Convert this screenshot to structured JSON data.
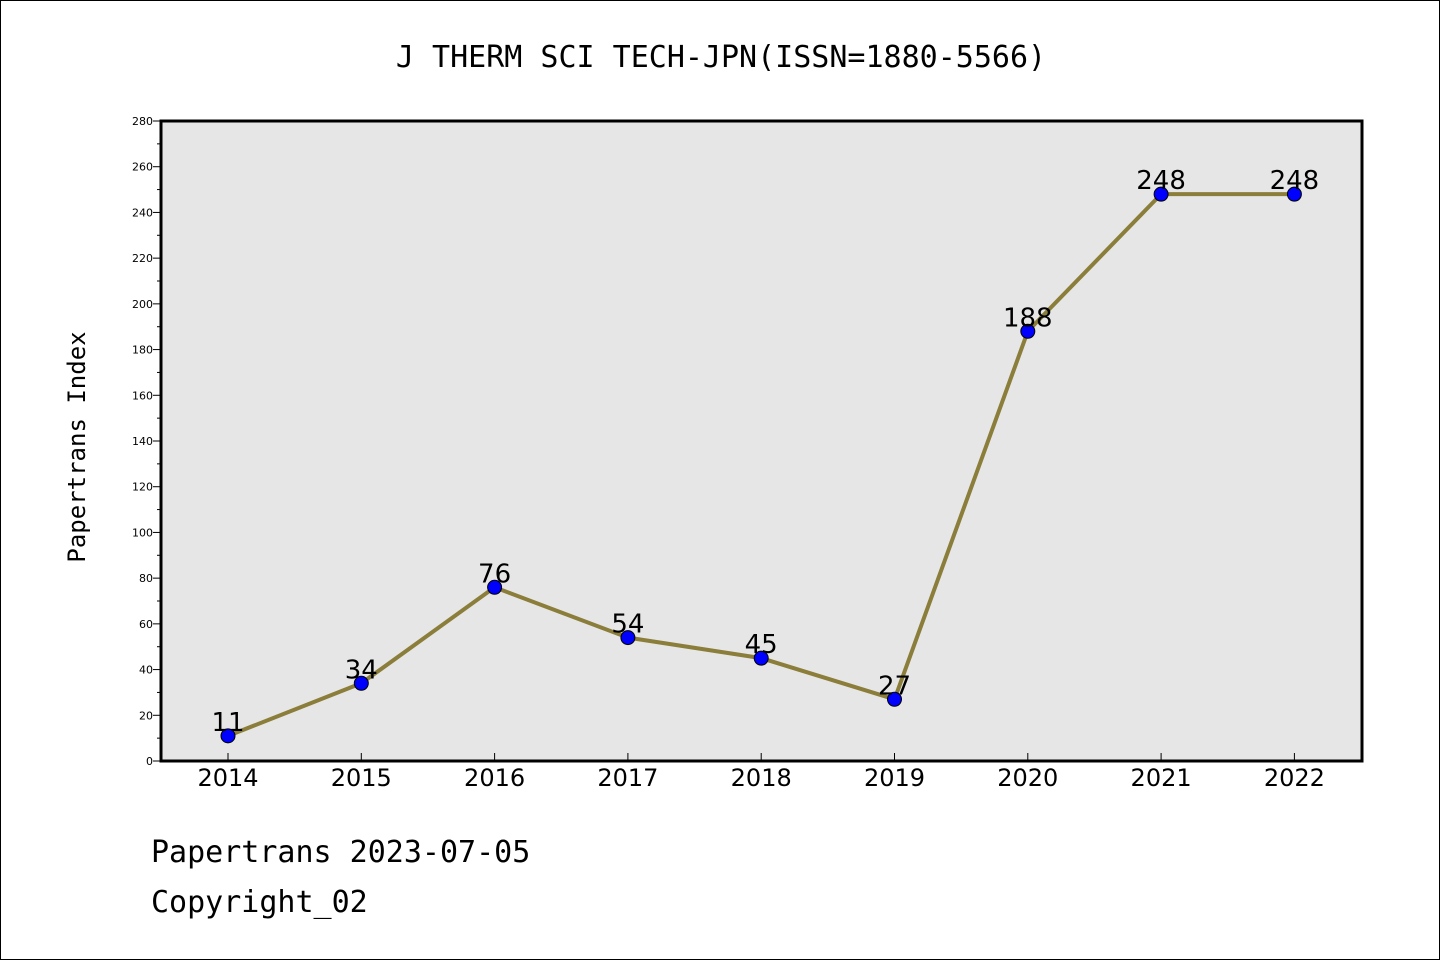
{
  "chart_data": {
    "type": "line",
    "title": "J THERM SCI TECH-JPN(ISSN=1880-5566)",
    "xlabel": "",
    "ylabel": "Papertrans Index",
    "categories": [
      "2014",
      "2015",
      "2016",
      "2017",
      "2018",
      "2019",
      "2020",
      "2021",
      "2022"
    ],
    "values": [
      11,
      34,
      76,
      54,
      45,
      27,
      188,
      248,
      248
    ],
    "ylim": [
      0,
      280
    ],
    "yticks": [
      0,
      20,
      40,
      60,
      80,
      100,
      120,
      140,
      160,
      180,
      200,
      220,
      240,
      260,
      280
    ],
    "grid": false,
    "colors": {
      "line": "#8b7d3a",
      "marker": "#0000ff",
      "plot_background": "#e6e6e6"
    }
  },
  "footer": {
    "line1": "Papertrans 2023-07-05",
    "line2": "Copyright_02"
  }
}
